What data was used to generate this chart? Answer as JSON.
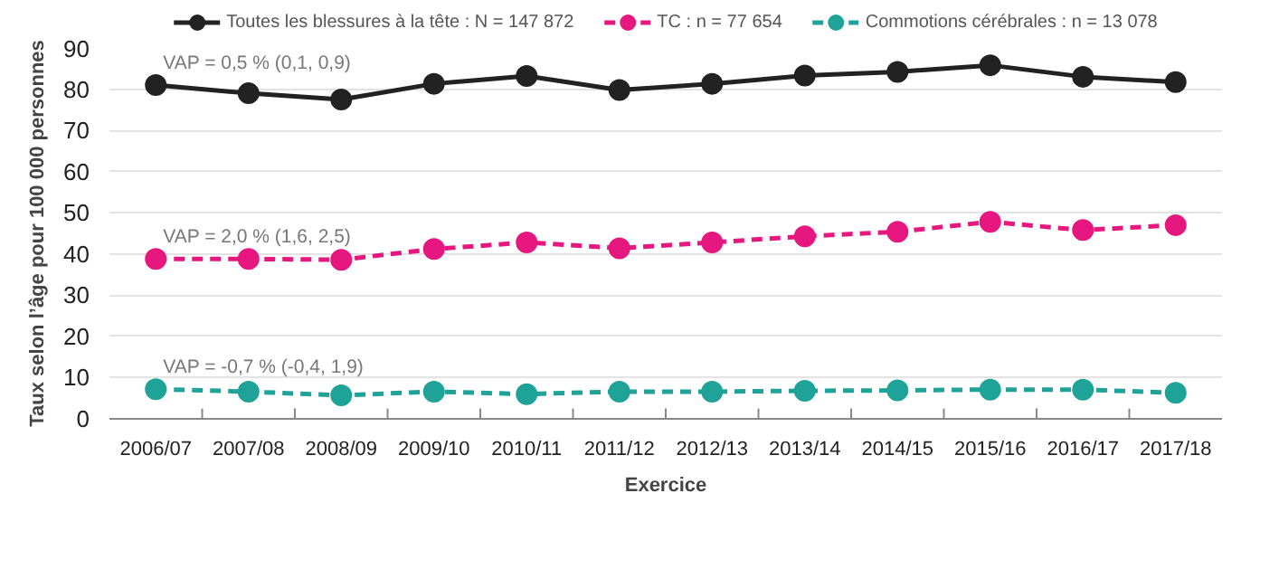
{
  "chart_data": {
    "type": "line",
    "xlabel": "Exercice",
    "ylabel": "Taux selon l’âge pour 100 000 personnes",
    "categories": [
      "2006/07",
      "2007/08",
      "2008/09",
      "2009/10",
      "2010/11",
      "2011/12",
      "2012/13",
      "2013/14",
      "2014/15",
      "2015/16",
      "2016/17",
      "2017/18"
    ],
    "series": [
      {
        "name": "Toutes les blessures à la tête : N = 147 872",
        "color": "#222222",
        "line_style": "solid",
        "values": [
          81,
          79,
          77.5,
          81.3,
          83.2,
          79.8,
          81.3,
          83.3,
          84.2,
          85.8,
          83,
          81.7
        ]
      },
      {
        "name": "TC : n = 77 654",
        "color": "#e6177e",
        "line_style": "dashed",
        "values": [
          38.8,
          38.8,
          38.6,
          41.2,
          42.8,
          41.4,
          42.8,
          44.3,
          45.4,
          47.8,
          45.8,
          47
        ]
      },
      {
        "name": "Commotions cérébrales : n = 13 078",
        "color": "#1fa398",
        "line_style": "dashed",
        "values": [
          7.2,
          6.6,
          5.7,
          6.6,
          6,
          6.6,
          6.6,
          6.8,
          6.9,
          7.1,
          7.1,
          6.3
        ]
      }
    ],
    "annotations": [
      "VAP = 0,5 % (0,1, 0,9)",
      "VAP = 2,0 % (1,6, 2,5)",
      "VAP = -0,7 % (-0,4, 1,9)"
    ],
    "ylim": [
      0,
      90
    ],
    "yticks": [
      0,
      10,
      20,
      30,
      40,
      50,
      60,
      70,
      80,
      90
    ],
    "grid": "y",
    "legend": "top",
    "marker": "circle"
  }
}
